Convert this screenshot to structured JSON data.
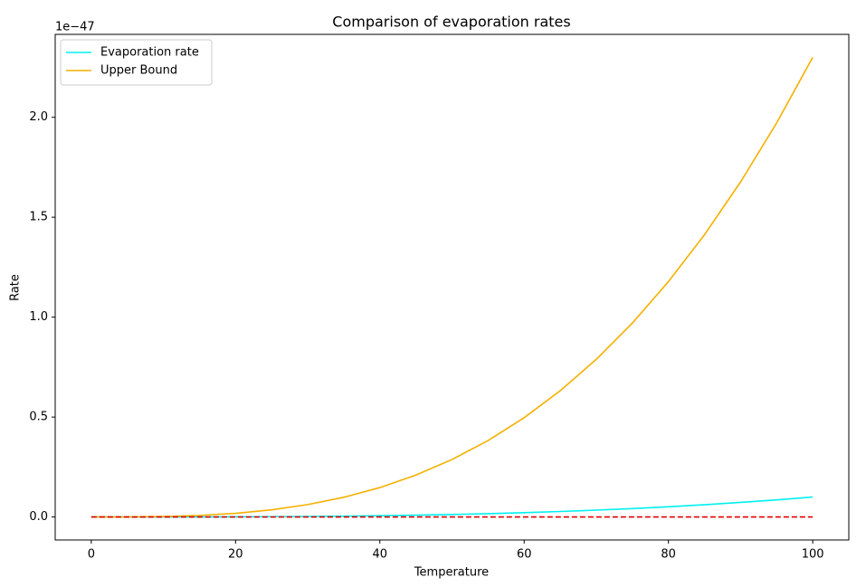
{
  "chart_data": {
    "type": "line",
    "title": "Comparison of evaporation rates",
    "xlabel": "Temperature",
    "ylabel": "Rate",
    "y_offset_label": "1e−47",
    "x": [
      0,
      5,
      10,
      15,
      20,
      25,
      30,
      35,
      40,
      45,
      50,
      55,
      60,
      65,
      70,
      75,
      80,
      85,
      90,
      95,
      100
    ],
    "series": [
      {
        "name": "Evaporation rate",
        "color": "#00f0f0",
        "linestyle": "solid",
        "values": [
          0,
          0,
          0.0001,
          0.0003,
          0.0008,
          0.0016,
          0.0027,
          0.0043,
          0.0064,
          0.0091,
          0.0125,
          0.0166,
          0.0216,
          0.0275,
          0.0343,
          0.0422,
          0.0512,
          0.0614,
          0.0729,
          0.0857,
          0.1
        ]
      },
      {
        "name": "Upper Bound",
        "color": "#f5b000",
        "linestyle": "solid",
        "values": [
          0,
          0.0003,
          0.0023,
          0.0078,
          0.0184,
          0.0359,
          0.0621,
          0.0986,
          0.1472,
          0.2096,
          0.2875,
          0.3827,
          0.4968,
          0.6316,
          0.7889,
          0.9703,
          1.1776,
          1.4125,
          1.6767,
          1.972,
          2.3
        ]
      },
      {
        "color": "#dd0000",
        "linestyle": "dashed",
        "values": [
          0,
          0,
          0,
          0,
          0,
          0,
          0,
          0,
          0,
          0,
          0,
          0,
          0,
          0,
          0,
          0,
          0,
          0,
          0,
          0,
          0
        ]
      }
    ],
    "xlim": [
      -5,
      105
    ],
    "xticks": [
      0,
      20,
      40,
      60,
      80,
      100
    ],
    "ylim": [
      -0.115,
      2.415
    ],
    "yticks": [
      {
        "value": 0,
        "label": "0.0"
      },
      0.5,
      {
        "value": 1,
        "label": "1.0"
      },
      1.5,
      {
        "value": 2,
        "label": "2.0"
      }
    ],
    "legend": "upper left"
  }
}
